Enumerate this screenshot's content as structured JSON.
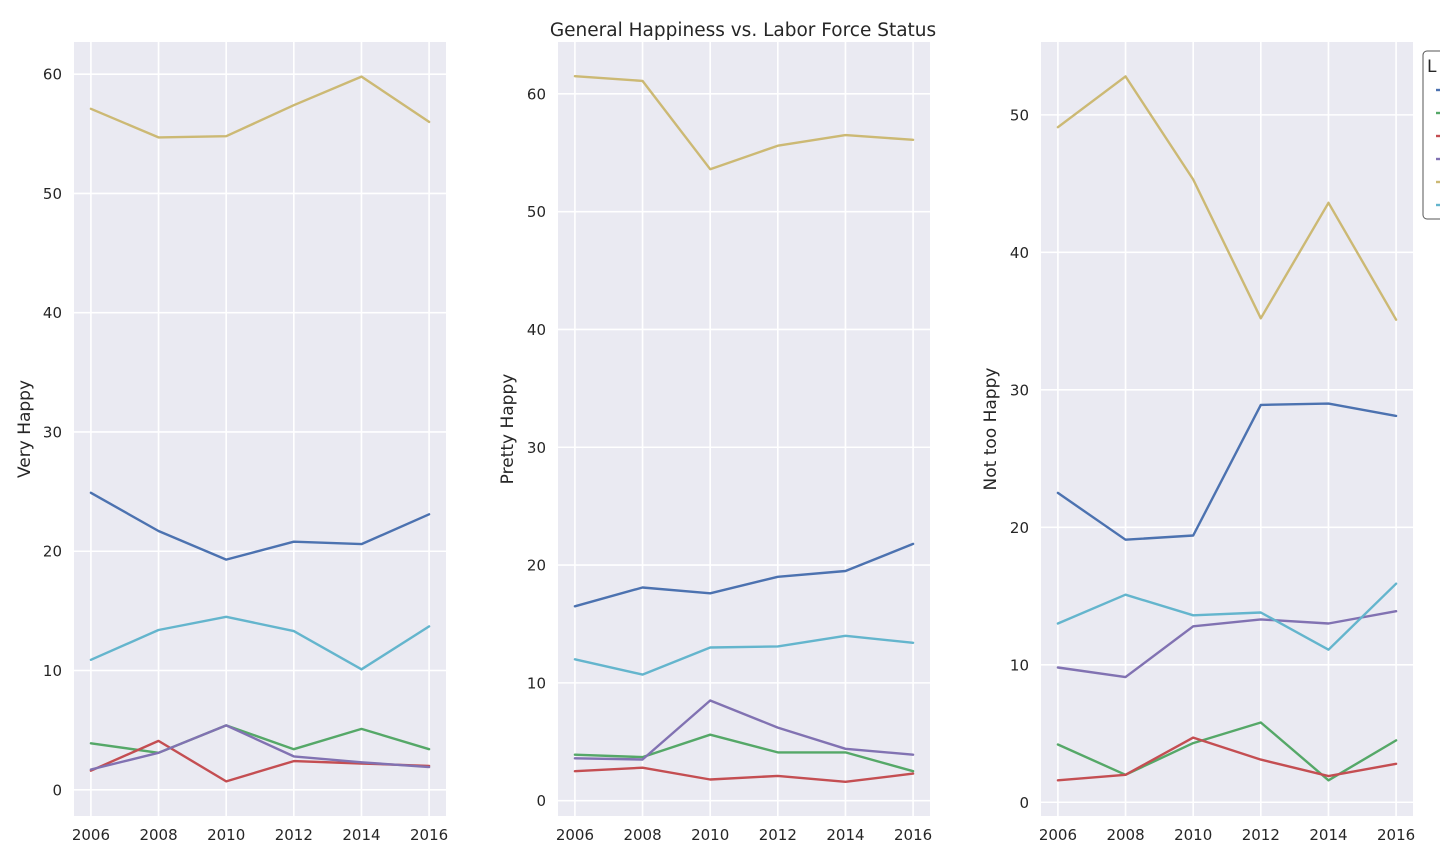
{
  "suptitle": "General Happiness vs. Labor Force Status",
  "legend": {
    "title_visible": "L"
  },
  "colors": {
    "background": "#eaeaf2",
    "grid": "#ffffff",
    "text": "#262626"
  },
  "chart_data": [
    {
      "type": "line",
      "ylabel": "Very Happy",
      "x": [
        2006,
        2008,
        2010,
        2012,
        2014,
        2016
      ],
      "xticks": [
        "2006",
        "2008",
        "2010",
        "2012",
        "2014",
        "2016"
      ],
      "yticks": [
        "0",
        "10",
        "20",
        "30",
        "40",
        "50",
        "60"
      ],
      "xlim": [
        2005.5,
        2016.5
      ],
      "ylim": [
        -2.2,
        62.7
      ],
      "grid": true,
      "series": [
        {
          "color": "#4c72b0",
          "values": [
            24.9,
            21.7,
            19.3,
            20.8,
            20.6,
            23.1
          ]
        },
        {
          "color": "#55a868",
          "values": [
            3.9,
            3.1,
            5.4,
            3.4,
            5.1,
            3.4
          ]
        },
        {
          "color": "#c44e52",
          "values": [
            1.6,
            4.1,
            0.7,
            2.4,
            2.2,
            2.0
          ]
        },
        {
          "color": "#8172b2",
          "values": [
            1.7,
            3.1,
            5.4,
            2.8,
            2.3,
            1.9
          ]
        },
        {
          "color": "#ccb974",
          "values": [
            57.1,
            54.7,
            54.8,
            57.4,
            59.8,
            56.0
          ]
        },
        {
          "color": "#64b5cd",
          "values": [
            10.9,
            13.4,
            14.5,
            13.3,
            10.1,
            13.7
          ]
        }
      ]
    },
    {
      "type": "line",
      "ylabel": "Pretty Happy",
      "x": [
        2006,
        2008,
        2010,
        2012,
        2014,
        2016
      ],
      "xticks": [
        "2006",
        "2008",
        "2010",
        "2012",
        "2014",
        "2016"
      ],
      "yticks": [
        "0",
        "10",
        "20",
        "30",
        "40",
        "50",
        "60"
      ],
      "xlim": [
        2005.5,
        2016.5
      ],
      "ylim": [
        -1.3,
        64.4
      ],
      "grid": true,
      "series": [
        {
          "color": "#4c72b0",
          "values": [
            16.5,
            18.1,
            17.6,
            19.0,
            19.5,
            21.8
          ]
        },
        {
          "color": "#55a868",
          "values": [
            3.9,
            3.7,
            5.6,
            4.1,
            4.1,
            2.5
          ]
        },
        {
          "color": "#c44e52",
          "values": [
            2.5,
            2.8,
            1.8,
            2.1,
            1.6,
            2.3
          ]
        },
        {
          "color": "#8172b2",
          "values": [
            3.6,
            3.5,
            8.5,
            6.2,
            4.4,
            3.9
          ]
        },
        {
          "color": "#ccb974",
          "values": [
            61.5,
            61.1,
            53.6,
            55.6,
            56.5,
            56.1
          ]
        },
        {
          "color": "#64b5cd",
          "values": [
            12.0,
            10.7,
            13.0,
            13.1,
            14.0,
            13.4
          ]
        }
      ]
    },
    {
      "type": "line",
      "ylabel": "Not too Happy",
      "x": [
        2006,
        2008,
        2010,
        2012,
        2014,
        2016
      ],
      "xticks": [
        "2006",
        "2008",
        "2010",
        "2012",
        "2014",
        "2016"
      ],
      "yticks": [
        "0",
        "10",
        "20",
        "30",
        "40",
        "50"
      ],
      "xlim": [
        2005.5,
        2016.5
      ],
      "ylim": [
        -1.0,
        55.3
      ],
      "grid": true,
      "series": [
        {
          "color": "#4c72b0",
          "values": [
            22.5,
            19.1,
            19.4,
            28.9,
            29.0,
            28.1
          ]
        },
        {
          "color": "#55a868",
          "values": [
            4.2,
            2.0,
            4.3,
            5.8,
            1.6,
            4.5
          ]
        },
        {
          "color": "#c44e52",
          "values": [
            1.6,
            2.0,
            4.7,
            3.1,
            1.9,
            2.8
          ]
        },
        {
          "color": "#8172b2",
          "values": [
            9.8,
            9.1,
            12.8,
            13.3,
            13.0,
            13.9
          ]
        },
        {
          "color": "#ccb974",
          "values": [
            49.1,
            52.8,
            45.3,
            35.2,
            43.6,
            35.1
          ]
        },
        {
          "color": "#64b5cd",
          "values": [
            13.0,
            15.1,
            13.6,
            13.8,
            11.1,
            15.9
          ]
        }
      ]
    }
  ]
}
